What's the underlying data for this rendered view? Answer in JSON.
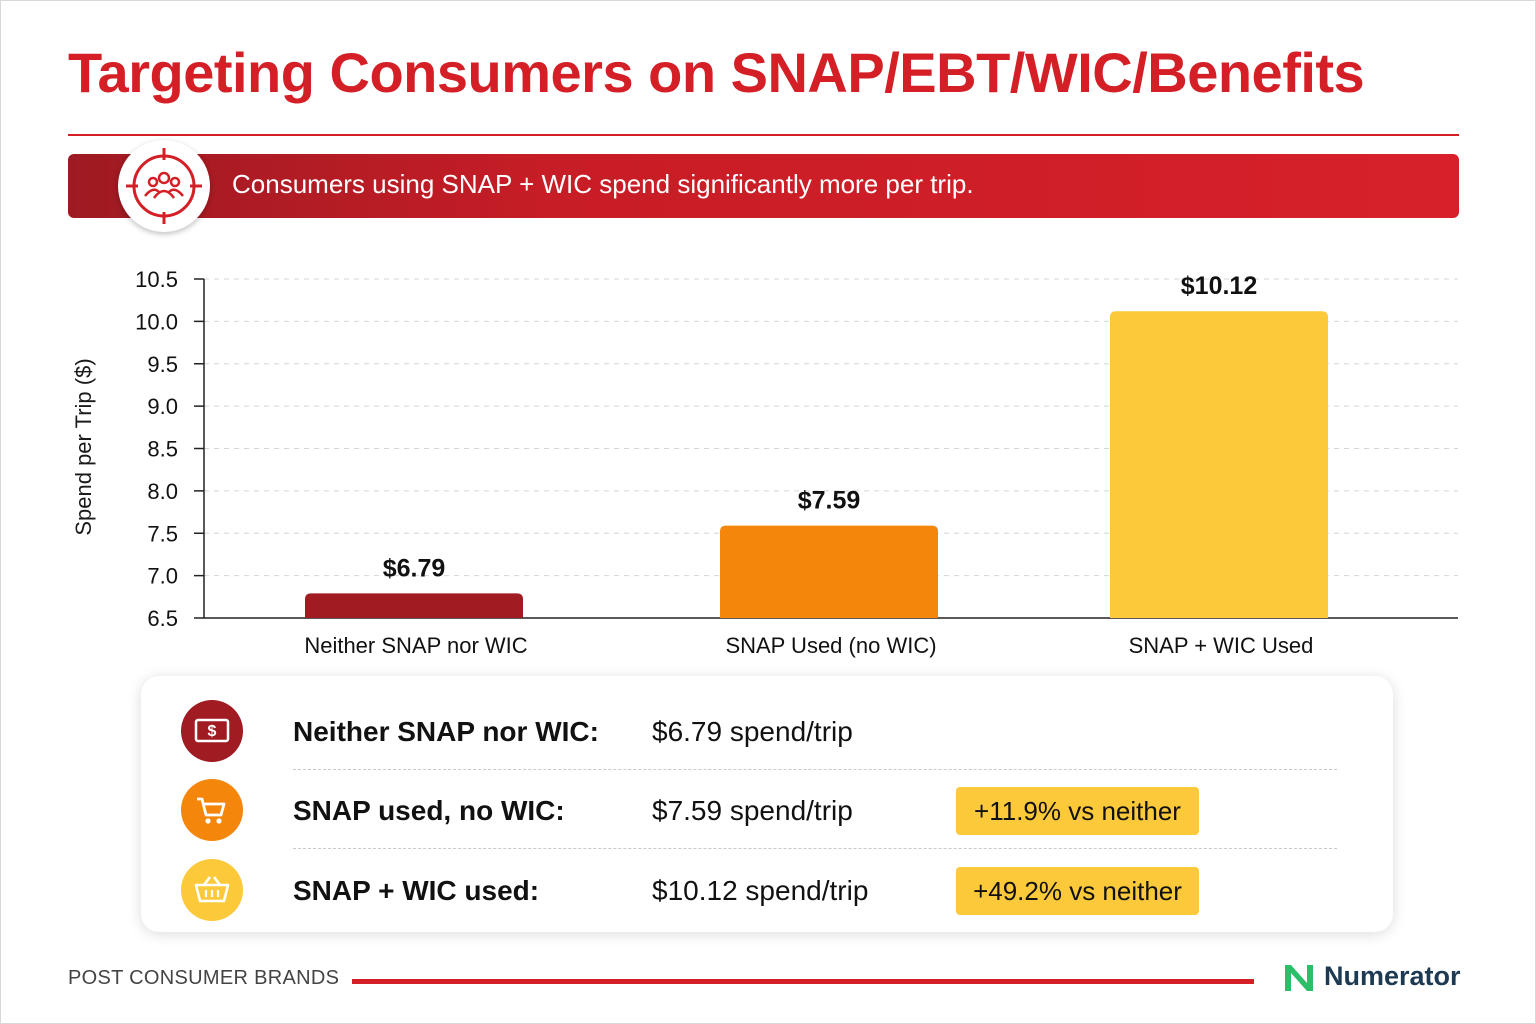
{
  "title": "Targeting Consumers on SNAP/EBT/WIC/Benefits",
  "banner": {
    "text": "Consumers using SNAP + WIC spend significantly more per trip.",
    "icon": "target-people-icon"
  },
  "colors": {
    "brand_red": "#d41f26",
    "neither": "#a01b22",
    "snap": "#f4860b",
    "snap_wic": "#fcc93a",
    "badge": "#fcc93a"
  },
  "chart_data": {
    "type": "bar",
    "categories": [
      "Neither SNAP nor WIC",
      "SNAP Used (no WIC)",
      "SNAP + WIC Used"
    ],
    "values": [
      6.79,
      7.59,
      10.12
    ],
    "value_labels": [
      "$6.79",
      "$7.59",
      "$10.12"
    ],
    "ylabel": "Spend per Trip ($)",
    "ylim": [
      6.5,
      10.5
    ],
    "yticks": [
      6.5,
      7.0,
      7.5,
      8.0,
      8.5,
      9.0,
      9.5,
      10.0,
      10.5
    ],
    "ytick_labels": [
      "6.5",
      "7.0",
      "7.5",
      "8.0",
      "8.5",
      "9.0",
      "9.5",
      "10.0",
      "10.5"
    ],
    "grid": true,
    "bar_colors": [
      "#a01b22",
      "#f4860b",
      "#fcc93a"
    ]
  },
  "summary": [
    {
      "icon": "money-icon",
      "color": "#a01b22",
      "label": "Neither SNAP nor WIC:",
      "value": "$6.79 spend/trip",
      "badge": ""
    },
    {
      "icon": "shopping-cart-icon",
      "color": "#f4860b",
      "label": "SNAP used, no WIC:",
      "value": "$7.59 spend/trip",
      "badge": "+11.9% vs neither"
    },
    {
      "icon": "shopping-basket-icon",
      "color": "#fcc93a",
      "label": "SNAP + WIC used:",
      "value": "$10.12 spend/trip",
      "badge": "+49.2% vs neither"
    }
  ],
  "footer": {
    "left": "POST CONSUMER BRANDS",
    "logo_text": "Numerator",
    "logo_icon": "numerator-logo-icon"
  }
}
